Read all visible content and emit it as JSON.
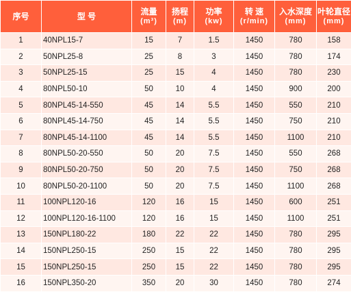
{
  "headers": {
    "no": "序号",
    "model": "型 号",
    "flow": "流量",
    "flow_unit": "(m³)",
    "head": "扬程",
    "head_unit": "(m)",
    "power": "功率",
    "power_unit": "(kw)",
    "speed": "转 速",
    "speed_unit": "(r/min)",
    "depth": "入水深度",
    "depth_unit": "(mm)",
    "impeller": "叶轮直径",
    "impeller_unit": "(mm)"
  },
  "rows": [
    {
      "no": "1",
      "model": "40NPL15-7",
      "flow": "15",
      "head": "7",
      "power": "1.5",
      "speed": "1450",
      "depth": "780",
      "impeller": "158"
    },
    {
      "no": "2",
      "model": "50NPL25-8",
      "flow": "25",
      "head": "8",
      "power": "3",
      "speed": "1450",
      "depth": "780",
      "impeller": "174"
    },
    {
      "no": "3",
      "model": "50NPL25-15",
      "flow": "25",
      "head": "15",
      "power": "4",
      "speed": "1450",
      "depth": "780",
      "impeller": "230"
    },
    {
      "no": "4",
      "model": "80NPL50-10",
      "flow": "50",
      "head": "10",
      "power": "4",
      "speed": "1450",
      "depth": "900",
      "impeller": "200"
    },
    {
      "no": "5",
      "model": "80NPL45-14-550",
      "flow": "45",
      "head": "14",
      "power": "5.5",
      "speed": "1450",
      "depth": "550",
      "impeller": "210"
    },
    {
      "no": "6",
      "model": "80NPL45-14-750",
      "flow": "45",
      "head": "14",
      "power": "5.5",
      "speed": "1450",
      "depth": "750",
      "impeller": "210"
    },
    {
      "no": "7",
      "model": "80NPL45-14-1100",
      "flow": "45",
      "head": "14",
      "power": "5.5",
      "speed": "1450",
      "depth": "1100",
      "impeller": "210"
    },
    {
      "no": "8",
      "model": "80NPL50-20-550",
      "flow": "50",
      "head": "20",
      "power": "7.5",
      "speed": "1450",
      "depth": "550",
      "impeller": "268"
    },
    {
      "no": "9",
      "model": "80NPL50-20-750",
      "flow": "50",
      "head": "20",
      "power": "7.5",
      "speed": "1450",
      "depth": "750",
      "impeller": "268"
    },
    {
      "no": "10",
      "model": "80NPL50-20-1100",
      "flow": "50",
      "head": "20",
      "power": "7.5",
      "speed": "1450",
      "depth": "1100",
      "impeller": "268"
    },
    {
      "no": "11",
      "model": "100NPL120-16",
      "flow": "120",
      "head": "16",
      "power": "15",
      "speed": "1450",
      "depth": "600",
      "impeller": "251"
    },
    {
      "no": "12",
      "model": "100NPL120-16-1100",
      "flow": "120",
      "head": "16",
      "power": "15",
      "speed": "1450",
      "depth": "1100",
      "impeller": "251"
    },
    {
      "no": "13",
      "model": "150NPL180-22",
      "flow": "180",
      "head": "22",
      "power": "22",
      "speed": "1450",
      "depth": "780",
      "impeller": "295"
    },
    {
      "no": "14",
      "model": "150NPL250-15",
      "flow": "250",
      "head": "15",
      "power": "22",
      "speed": "1450",
      "depth": "780",
      "impeller": "295"
    },
    {
      "no": "15",
      "model": "150NPL250-15",
      "flow": "250",
      "head": "15",
      "power": "22",
      "speed": "1450",
      "depth": "780",
      "impeller": "295"
    },
    {
      "no": "16",
      "model": "150NPL350-20",
      "flow": "350",
      "head": "20",
      "power": "30",
      "speed": "1450",
      "depth": "780",
      "impeller": "274"
    }
  ],
  "colors": {
    "header_bg": "#ff5f3b",
    "header_text": "#ffffff",
    "row_odd_bg": "#ffe8e1",
    "row_even_bg": "#fff5f1"
  }
}
